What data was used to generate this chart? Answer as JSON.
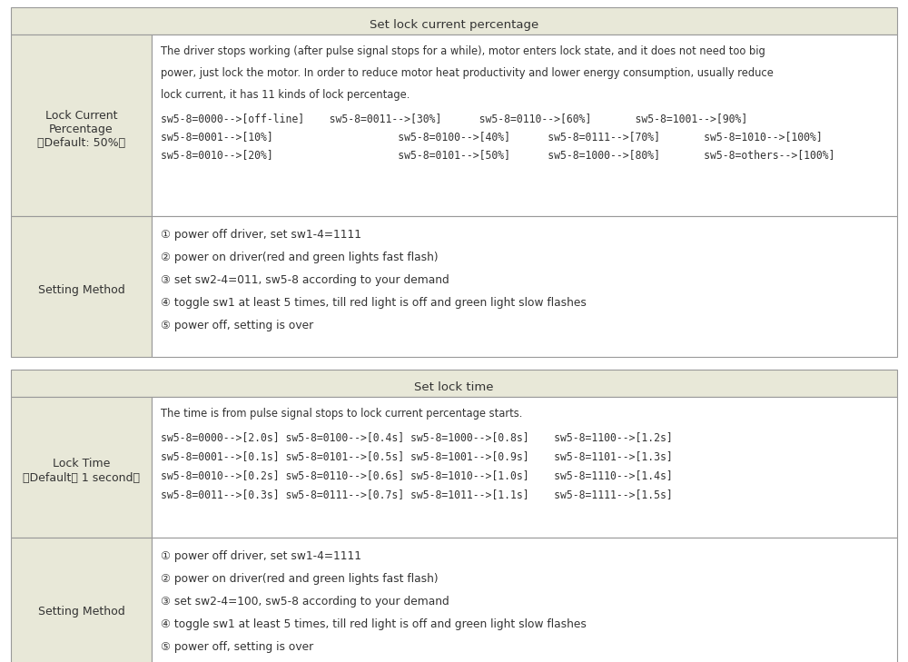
{
  "header_bg": "#e8e8d8",
  "cell_bg": "#ffffff",
  "left_cell_bg": "#e8e8d8",
  "border_color": "#999999",
  "text_color": "#333333",
  "section1_header": "Set lock current percentage",
  "section1_row1_left": "Lock Current\nPercentage\n（Default: 50%）",
  "section1_row1_right_lines": [
    "The driver stops working (after pulse signal stops for a while), motor enters lock state, and it does not need too big",
    "power, just lock the motor. In order to reduce motor heat productivity and lower energy consumption, usually reduce",
    "lock current, it has 11 kinds of lock percentage.",
    "sw5-8=0000-->[off-line]    sw5-8=0011-->[30%]      sw5-8=0110-->[60%]       sw5-8=1001-->[90%]",
    "sw5-8=0001-->[10%]                    sw5-8=0100-->[40%]      sw5-8=0111-->[70%]       sw5-8=1010-->[100%]",
    "sw5-8=0010-->[20%]                    sw5-8=0101-->[50%]      sw5-8=1000-->[80%]       sw5-8=others-->[100%]"
  ],
  "section1_row2_left": "Setting Method",
  "section1_row2_right_lines": [
    "① power off driver, set sw1-4=1111",
    "② power on driver(red and green lights fast flash)",
    "③ set sw2-4=011, sw5-8 according to your demand",
    "④ toggle sw1 at least 5 times, till red light is off and green light slow flashes",
    "⑤ power off, setting is over"
  ],
  "section2_header": "Set lock time",
  "section2_row1_left": "Lock Time\n（Default： 1 second）",
  "section2_row1_right_lines": [
    "The time is from pulse signal stops to lock current percentage starts.",
    "sw5-8=0000-->[2.0s] sw5-8=0100-->[0.4s] sw5-8=1000-->[0.8s]    sw5-8=1100-->[1.2s]",
    "sw5-8=0001-->[0.1s] sw5-8=0101-->[0.5s] sw5-8=1001-->[0.9s]    sw5-8=1101-->[1.3s]",
    "sw5-8=0010-->[0.2s] sw5-8=0110-->[0.6s] sw5-8=1010-->[1.0s]    sw5-8=1110-->[1.4s]",
    "sw5-8=0011-->[0.3s] sw5-8=0111-->[0.7s] sw5-8=1011-->[1.1s]    sw5-8=1111-->[1.5s]"
  ],
  "section2_row2_left": "Setting Method",
  "section2_row2_right_lines": [
    "① power off driver, set sw1-4=1111",
    "② power on driver(red and green lights fast flash)",
    "③ set sw2-4=100, sw5-8 according to your demand",
    "④ toggle sw1 at least 5 times, till red light is off and green light slow flashes",
    "⑤ power off, setting is over"
  ]
}
